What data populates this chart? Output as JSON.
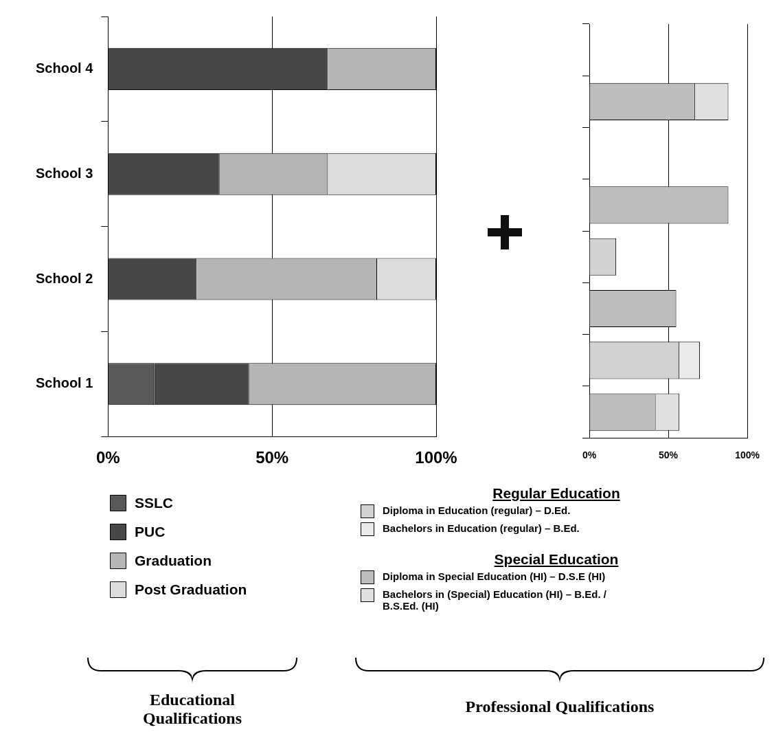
{
  "chart_data": [
    {
      "type": "bar",
      "orientation": "horizontal",
      "stacked": true,
      "categories": [
        "School 4",
        "School 3",
        "School 2",
        "School 1"
      ],
      "xlabel": "Educational Qualifications",
      "xlim": [
        0,
        100
      ],
      "xticks": [
        {
          "value": 0,
          "label": "0%"
        },
        {
          "value": 50,
          "label": "50%"
        },
        {
          "value": 100,
          "label": "100%"
        }
      ],
      "grid": "x",
      "legend": "bottom",
      "series": [
        {
          "name": "SSLC",
          "color": "#5a5a5a",
          "values": [
            null,
            null,
            null,
            14
          ]
        },
        {
          "name": "PUC",
          "color": "#474747",
          "values": [
            67,
            34,
            27,
            29
          ]
        },
        {
          "name": "Graduation",
          "color": "#b4b4b4",
          "values": [
            33,
            33,
            55,
            57
          ]
        },
        {
          "name": "Post Graduation",
          "color": "#dcdcdc",
          "values": [
            null,
            33,
            18,
            null
          ]
        }
      ]
    },
    {
      "type": "bar",
      "orientation": "horizontal",
      "stacked": true,
      "categories": [
        null,
        null,
        null,
        null,
        null,
        null,
        null,
        null
      ],
      "tick_labels": "x",
      "xlabel": "Professional Qualifications",
      "annotations": [
        "Regular Education",
        "Special Education"
      ],
      "xlim": [
        0,
        100
      ],
      "xticks": [
        {
          "value": 0,
          "label": "0%"
        },
        {
          "value": 50,
          "label": "50%"
        },
        {
          "value": 100,
          "label": "100%"
        }
      ],
      "grid": "x",
      "legend": "bottom",
      "series": [
        {
          "name": "Diploma in Education (regular) – D.Ed.",
          "color": "#d2d2d2",
          "values": [
            null,
            null,
            null,
            null,
            17,
            null,
            57,
            null
          ]
        },
        {
          "name": "Bachelors in Education (regular) – B.Ed.",
          "color": "#eaeaea",
          "values": [
            null,
            null,
            null,
            null,
            null,
            null,
            13,
            null
          ]
        },
        {
          "name": "Diploma in Special Education (HI) – D.S.E (HI)",
          "color": "#bdbdbd",
          "values": [
            null,
            67,
            null,
            88,
            null,
            55,
            null,
            42
          ]
        },
        {
          "name": "Bachelors in (Special) Education (HI) – B.Ed. / B.S.Ed. (HI)",
          "color": "#e0e0e0",
          "values": [
            null,
            21,
            null,
            null,
            null,
            null,
            null,
            15
          ]
        }
      ]
    }
  ]
}
